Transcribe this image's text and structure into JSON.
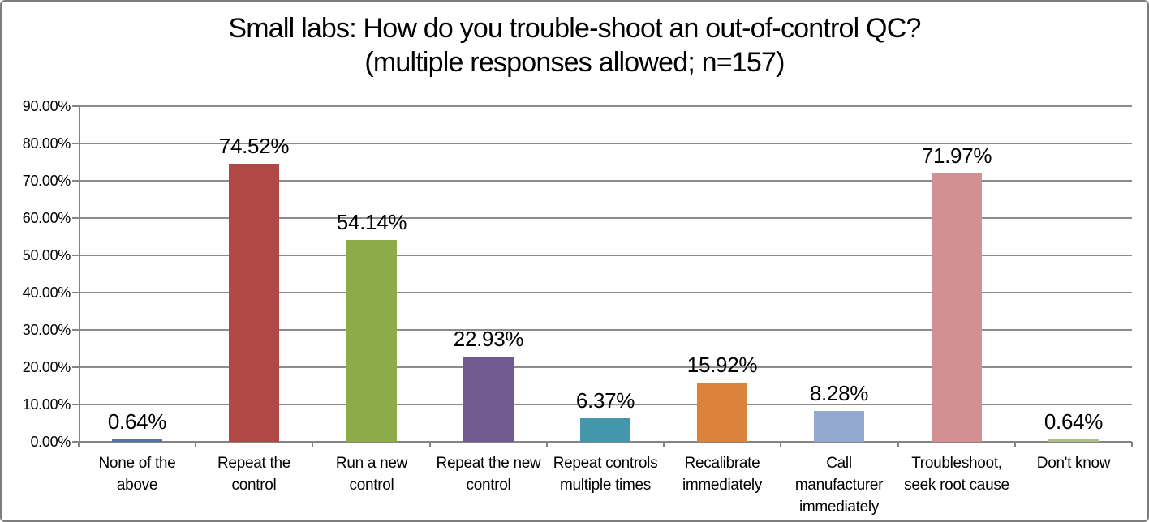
{
  "chart_data": {
    "type": "bar",
    "title_line1": "Small labs: How do you trouble-shoot an out-of-control QC?",
    "title_line2": "(multiple responses allowed; n=157)",
    "categories": [
      "None of the above",
      "Repeat the control",
      "Run a new control",
      "Repeat the new control",
      "Repeat controls multiple times",
      "Recalibrate immediately",
      "Call manufacturer immediately",
      "Troubleshoot, seek root cause",
      "Don't know"
    ],
    "category_tick_lines": [
      "None of the\nabove",
      "Repeat the\ncontrol",
      "Run a new\ncontrol",
      "Repeat the new\ncontrol",
      "Repeat controls\nmultiple times",
      "Recalibrate\nimmediately",
      "Call\nmanufacturer\nimmediately",
      "Troubleshoot,\nseek root cause",
      "Don't know"
    ],
    "values": [
      0.64,
      74.52,
      54.14,
      22.93,
      6.37,
      15.92,
      8.28,
      71.97,
      0.64
    ],
    "value_labels": [
      "0.64%",
      "74.52%",
      "54.14%",
      "22.93%",
      "6.37%",
      "15.92%",
      "8.28%",
      "71.97%",
      "0.64%"
    ],
    "bar_colors": [
      "#53759D",
      "#B04846",
      "#8DAC49",
      "#715A8F",
      "#4497AB",
      "#DB823D",
      "#93A9CF",
      "#D29092",
      "#AEBE8A"
    ],
    "y_ticks": [
      "0.00%",
      "10.00%",
      "20.00%",
      "30.00%",
      "40.00%",
      "50.00%",
      "60.00%",
      "70.00%",
      "80.00%",
      "90.00%"
    ],
    "y_tick_step": 10,
    "ylim": [
      0,
      90
    ],
    "xlabel": "",
    "ylabel": "",
    "grid": true,
    "legend": false
  },
  "colors": {
    "grid": "#8c8c8c",
    "axis": "#848484",
    "frame_border": "#7d7d7d",
    "background": "#ffffff",
    "text": "#000000"
  }
}
